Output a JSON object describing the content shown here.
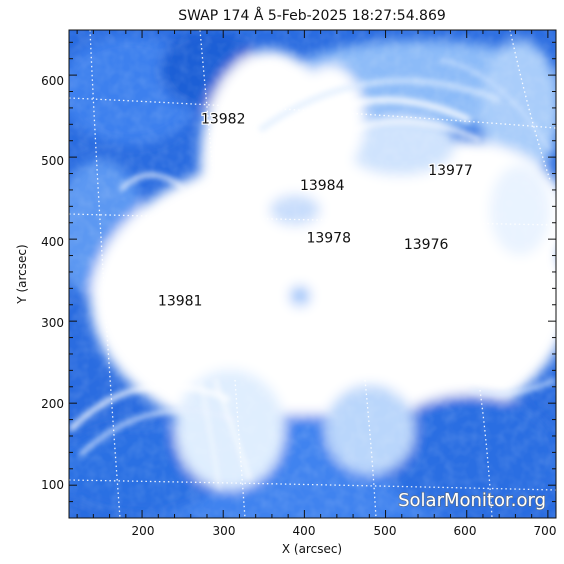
{
  "plot": {
    "title": "SWAP 174 Å  5-Feb-2025 18:27:54.869",
    "xlabel": "X (arcsec)",
    "ylabel": "Y (arcsec)",
    "x_ticks": [
      "200",
      "300",
      "400",
      "500",
      "600",
      "700"
    ],
    "y_ticks": [
      "100",
      "200",
      "300",
      "400",
      "500",
      "600"
    ],
    "watermark": "SolarMonitor.org"
  },
  "image": {
    "xlim": [
      110,
      710
    ],
    "ylim": [
      60,
      655
    ],
    "colormap": [
      "#1f5fd6",
      "#3b82f0",
      "#7fb2f7",
      "#c9e0fc",
      "#ffffff"
    ]
  },
  "regions": [
    {
      "label": "13982",
      "x": 300,
      "y": 547
    },
    {
      "label": "13977",
      "x": 580,
      "y": 484
    },
    {
      "label": "13984",
      "x": 422,
      "y": 466
    },
    {
      "label": "13978",
      "x": 430,
      "y": 402
    },
    {
      "label": "13976",
      "x": 550,
      "y": 394
    },
    {
      "label": "13981",
      "x": 247,
      "y": 325
    }
  ]
}
